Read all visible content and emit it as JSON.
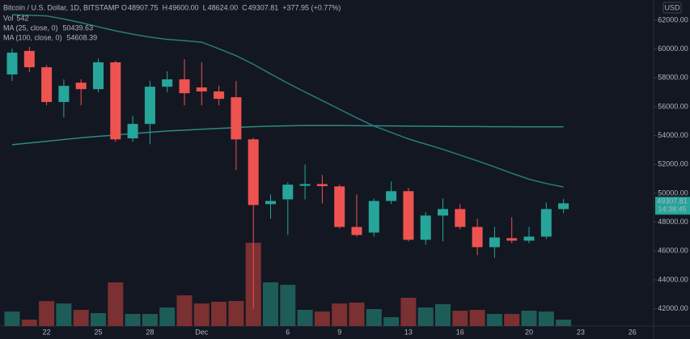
{
  "chart_data": {
    "type": "candlestick",
    "title": "Bitcoin / U.S. Dollar, 1D, BITSTAMP",
    "ohlc_header": [
      {
        "key": "O",
        "text": "48907.75"
      },
      {
        "key": "H",
        "text": "49600.00"
      },
      {
        "key": "L",
        "text": "48624.00"
      },
      {
        "key": "C",
        "text": "49307.81"
      }
    ],
    "change": "+377.95 (+0.77%)",
    "volume_label": "Vol",
    "currency": "USD",
    "countdown": "14:38:45",
    "categories": [
      null,
      null,
      "22",
      null,
      null,
      "25",
      null,
      null,
      "28",
      null,
      null,
      "Dec",
      null,
      null,
      null,
      null,
      "6",
      null,
      null,
      "9",
      null,
      null,
      null,
      "13",
      null,
      null,
      "16",
      null,
      null,
      null,
      "20",
      null,
      null,
      "23",
      null,
      null,
      "26"
    ],
    "open": [
      58240,
      59870,
      58740,
      56330,
      57670,
      57220,
      59080,
      53810,
      54810,
      57390,
      57900,
      57340,
      57060,
      56660,
      53740,
      49250,
      49580,
      50520,
      50640,
      50480,
      47670,
      47280,
      49470,
      50150,
      46780,
      48460,
      48910,
      47670,
      46270,
      46890,
      46720,
      47000,
      48907.75,
      null,
      null,
      null,
      null
    ],
    "high": [
      60030,
      60150,
      58900,
      57900,
      57900,
      59350,
      59200,
      55370,
      57800,
      58460,
      59300,
      59080,
      57450,
      57790,
      53850,
      49920,
      50770,
      52000,
      51270,
      50600,
      49920,
      49640,
      50820,
      50380,
      48690,
      49640,
      49250,
      48240,
      47670,
      48350,
      47670,
      49360,
      49600,
      null,
      null,
      null,
      null
    ],
    "low": [
      57790,
      58400,
      56100,
      55260,
      56100,
      57000,
      53570,
      53570,
      53400,
      57000,
      56100,
      56100,
      56100,
      51610,
      42000,
      48240,
      47110,
      49580,
      49300,
      47560,
      47000,
      47000,
      49250,
      46670,
      46440,
      46670,
      47500,
      45710,
      45540,
      46550,
      46550,
      46830,
      48624,
      null,
      null,
      null,
      null
    ],
    "close": [
      59750,
      58740,
      56330,
      57450,
      57220,
      59080,
      53740,
      54810,
      57390,
      57900,
      56940,
      57060,
      56550,
      53740,
      49190,
      49470,
      50600,
      50640,
      50500,
      47670,
      47110,
      49470,
      50150,
      46780,
      48460,
      48910,
      47670,
      46270,
      46940,
      46720,
      47000,
      48910,
      49307.81,
      null,
      null,
      null,
      null
    ],
    "volume": [
      1220,
      540,
      2100,
      1900,
      1360,
      1090,
      3670,
      1020,
      1020,
      1560,
      2580,
      1900,
      2040,
      2110,
      7000,
      3670,
      3470,
      1360,
      1220,
      1900,
      1970,
      1430,
      750,
      2380,
      1560,
      1840,
      1290,
      1360,
      1020,
      1020,
      1290,
      1220,
      542,
      null,
      null,
      null,
      null
    ],
    "up_color": "#26a69a",
    "down_color": "#ef5350",
    "volume_up_color": "#1e5c58",
    "volume_down_color": "#7b3032",
    "series": [
      {
        "name": "MA (25, close, 0)",
        "color": "#2a7c77",
        "values": [
          62375,
          62340,
          62300,
          62080,
          61830,
          61540,
          61260,
          61030,
          60830,
          60670,
          60580,
          60480,
          60020,
          59540,
          58950,
          58280,
          57630,
          57020,
          56430,
          55830,
          55230,
          54660,
          54220,
          53770,
          53410,
          53050,
          52650,
          52250,
          51830,
          51390,
          50980,
          50680,
          50439.63,
          null,
          null,
          null,
          null
        ]
      },
      {
        "name": "MA (100, close, 0)",
        "color": "#2e8a83",
        "values": [
          53370,
          53490,
          53610,
          53730,
          53850,
          53950,
          54040,
          54140,
          54230,
          54320,
          54380,
          54440,
          54500,
          54560,
          54620,
          54650,
          54680,
          54700,
          54700,
          54700,
          54690,
          54680,
          54670,
          54660,
          54650,
          54640,
          54630,
          54630,
          54620,
          54620,
          54610,
          54610,
          54608.39,
          null,
          null,
          null,
          null
        ]
      }
    ],
    "ylim": [
      40800,
      63400
    ],
    "yticks": [
      {
        "value": 42000,
        "label": "42000.00"
      },
      {
        "value": 44000,
        "label": "44000.00"
      },
      {
        "value": 46000,
        "label": "46000.00"
      },
      {
        "value": 48000,
        "label": "48000.00"
      },
      {
        "value": 50000,
        "label": "50000.00"
      },
      {
        "value": 52000,
        "label": "52000.00"
      },
      {
        "value": 54000,
        "label": "54000.00"
      },
      {
        "value": 56000,
        "label": "56000.00"
      },
      {
        "value": 58000,
        "label": "58000.00"
      },
      {
        "value": 60000,
        "label": "60000.00"
      },
      {
        "value": 62000,
        "label": "62000.00"
      }
    ]
  }
}
